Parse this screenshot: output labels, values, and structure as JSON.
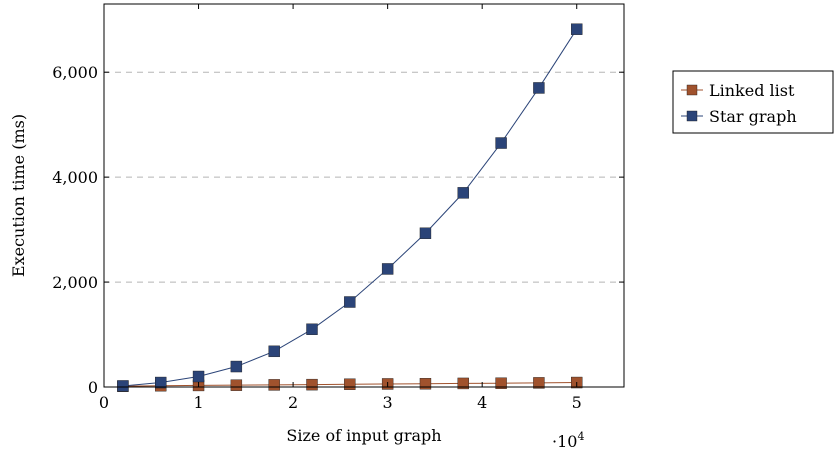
{
  "chart_data": {
    "type": "line",
    "xlabel": "Size of input graph",
    "ylabel": "Execution time (ms)",
    "x_multiplier_label": "·10",
    "x_multiplier_exponent": "4",
    "xlim": [
      0,
      55000
    ],
    "ylim": [
      0,
      7300
    ],
    "x_ticks": [
      0,
      10000,
      20000,
      30000,
      40000,
      50000
    ],
    "x_tick_labels": [
      "0",
      "1",
      "2",
      "3",
      "4",
      "5"
    ],
    "y_ticks": [
      0,
      2000,
      4000,
      6000
    ],
    "y_tick_labels": [
      "0",
      "2,000",
      "4,000",
      "6,000"
    ],
    "grid": "horizontal-dashed",
    "legend_position": "outside-right",
    "x": [
      2000,
      6000,
      10000,
      14000,
      18000,
      22000,
      26000,
      30000,
      34000,
      38000,
      42000,
      46000,
      50000
    ],
    "series": [
      {
        "name": "Linked list",
        "color": "#a0522d",
        "marker": "square",
        "values": [
          15,
          25,
          30,
          35,
          40,
          45,
          52,
          58,
          62,
          68,
          72,
          78,
          85
        ]
      },
      {
        "name": "Star graph",
        "color": "#2b4478",
        "marker": "square",
        "values": [
          20,
          85,
          200,
          390,
          680,
          1100,
          1620,
          2250,
          2930,
          3700,
          4650,
          5700,
          6820
        ]
      }
    ]
  }
}
